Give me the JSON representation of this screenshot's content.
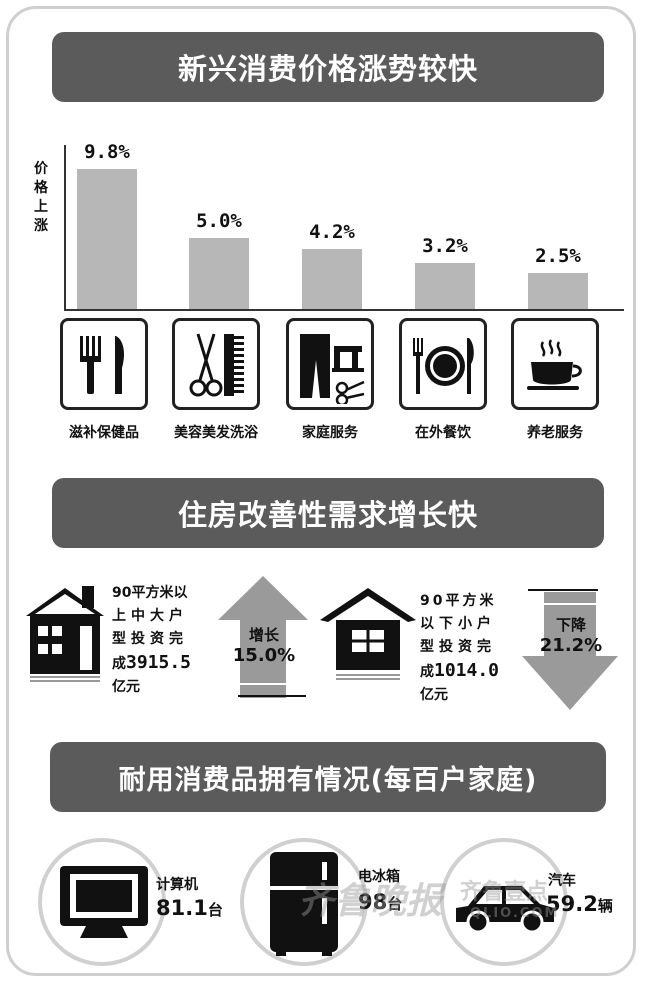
{
  "sections": {
    "prices_title": "新兴消费价格涨势较快",
    "housing_title": "住房改善性需求增长快",
    "durables_title": "耐用消费品拥有情况(每百户家庭)"
  },
  "chart_data": {
    "type": "bar",
    "ylabel": "价格上涨",
    "categories": [
      "滋补保健品",
      "美容美发洗浴",
      "家庭服务",
      "在外餐饮",
      "养老服务"
    ],
    "values": [
      9.8,
      5.0,
      4.2,
      3.2,
      2.5
    ],
    "value_labels": [
      "9.8%",
      "5.0%",
      "4.2%",
      "3.2%",
      "2.5%"
    ],
    "icons": [
      "fork-knife-icon",
      "scissors-comb-icon",
      "clothes-sewing-machine-icon",
      "dining-plate-icon",
      "steaming-cup-icon"
    ],
    "bar_color": "#b7b7b7",
    "ymax": 9.8
  },
  "housing": {
    "large": {
      "text_lines": [
        "90平方米以",
        "上中大户",
        "型投资完"
      ],
      "text_prefix": "成",
      "amount": "3915.5",
      "unit": "亿元",
      "change_label": "增长",
      "change_value": "15.0%",
      "direction": "up"
    },
    "small": {
      "text_lines": [
        "90平方米",
        "以下小户",
        "型投资完"
      ],
      "text_prefix": "成",
      "amount": "1014.0",
      "unit": "亿元",
      "change_label": "下降",
      "change_value": "21.2%",
      "direction": "down"
    }
  },
  "durables": [
    {
      "label": "计算机",
      "value": "81.1",
      "unit": "台",
      "icon": "computer-monitor-icon"
    },
    {
      "label": "电冰箱",
      "value": "98",
      "unit": "台",
      "icon": "refrigerator-icon"
    },
    {
      "label": "汽车",
      "value": "59.2",
      "unit": "辆",
      "icon": "car-icon"
    }
  ],
  "watermark": {
    "text1": "齐鲁晚报",
    "text2": "齐鲁壹点",
    "text3": "QLIO.COM"
  },
  "colors": {
    "banner": "#5b5b5b",
    "bar": "#b7b7b7",
    "arrow": "#9a9a9a",
    "frame": "#cfcfcf"
  }
}
